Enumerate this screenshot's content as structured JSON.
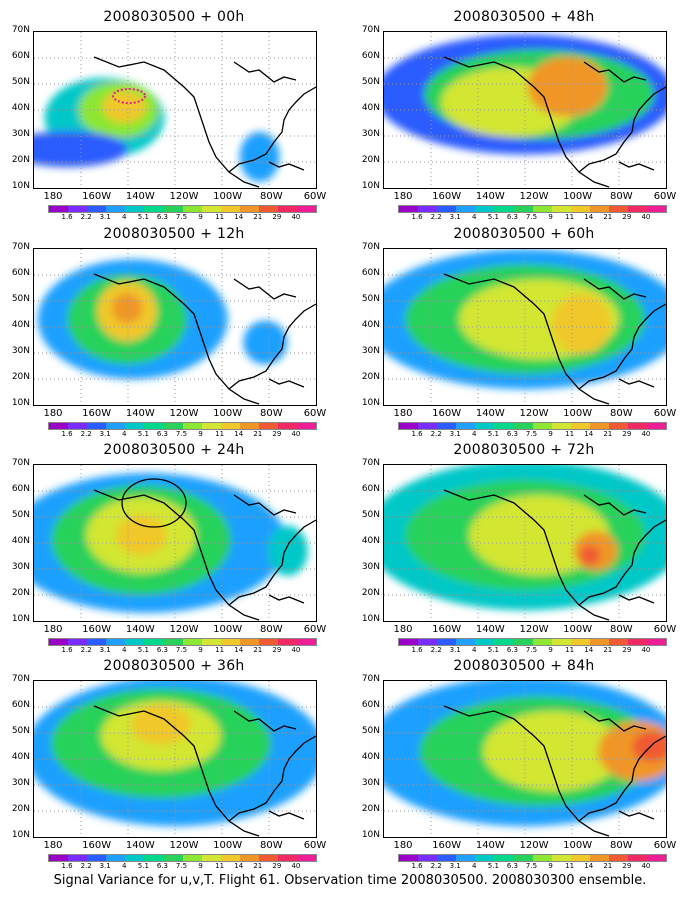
{
  "caption": "Signal Variance for u,v,T. Flight 61. Observation time 2008030500. 2008030300 ensemble.",
  "lat_labels": [
    "70N",
    "60N",
    "50N",
    "40N",
    "30N",
    "20N",
    "10N"
  ],
  "lon_labels": [
    "180",
    "160W",
    "140W",
    "120W",
    "100W",
    "80W",
    "60W"
  ],
  "colorbar": {
    "labels": [
      "1.6",
      "2.2",
      "3.1",
      "4",
      "5.1",
      "6.3",
      "7.5",
      "9",
      "11",
      "14",
      "21",
      "29",
      "40"
    ],
    "colors": [
      "#9b00c8",
      "#7a2cff",
      "#2a5cff",
      "#1fa0ff",
      "#00c8c8",
      "#00d88c",
      "#28d25a",
      "#8ce632",
      "#d2e632",
      "#f0c82a",
      "#f09628",
      "#f05a32",
      "#f02864",
      "#f01e96"
    ]
  },
  "panels": [
    {
      "title": "2008030500 + 00h"
    },
    {
      "title": "2008030500 + 48h"
    },
    {
      "title": "2008030500 + 12h"
    },
    {
      "title": "2008030500 + 60h"
    },
    {
      "title": "2008030500 + 24h"
    },
    {
      "title": "2008030500 + 72h"
    },
    {
      "title": "2008030500 + 36h"
    },
    {
      "title": "2008030500 + 84h"
    }
  ]
}
